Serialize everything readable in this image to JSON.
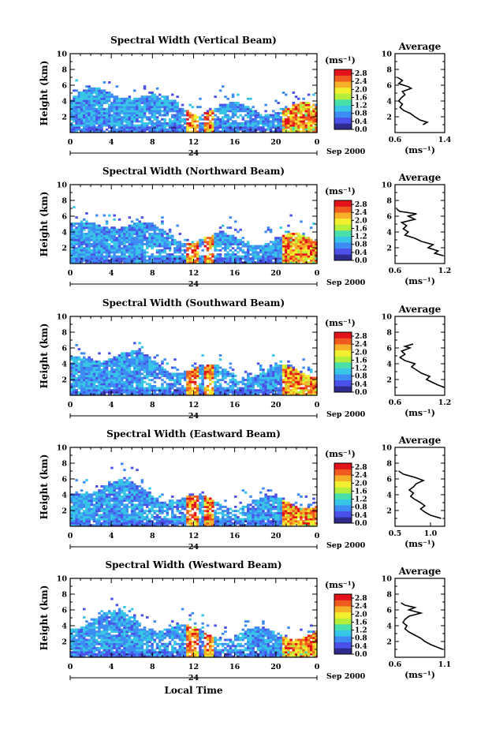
{
  "chart_data": {
    "type": "heatmap",
    "panels": [
      {
        "title": "Spectral Width (Vertical Beam)",
        "avg_xticks": [
          "0.6",
          "1.4"
        ],
        "avg_xlim": [
          0.6,
          1.4
        ],
        "avg_profile": [
          [
            1.05,
            1
          ],
          [
            1.12,
            1.3
          ],
          [
            1.0,
            1.6
          ],
          [
            0.92,
            2
          ],
          [
            0.85,
            2.4
          ],
          [
            0.74,
            2.8
          ],
          [
            0.68,
            3.2
          ],
          [
            0.72,
            3.6
          ],
          [
            0.66,
            4
          ],
          [
            0.7,
            4.4
          ],
          [
            0.76,
            4.8
          ],
          [
            0.72,
            5.2
          ],
          [
            0.86,
            5.6
          ],
          [
            0.82,
            5.8
          ],
          [
            0.66,
            6.2
          ],
          [
            0.72,
            6.6
          ],
          [
            0.64,
            7
          ]
        ]
      },
      {
        "title": "Spectral Width (Northward Beam)",
        "avg_xticks": [
          "0.6",
          "1.2"
        ],
        "avg_xlim": [
          0.6,
          1.2
        ],
        "avg_profile": [
          [
            1.18,
            1
          ],
          [
            1.08,
            1.3
          ],
          [
            1.12,
            1.6
          ],
          [
            1.0,
            2
          ],
          [
            1.06,
            2.4
          ],
          [
            0.92,
            2.8
          ],
          [
            0.84,
            3.2
          ],
          [
            0.72,
            3.6
          ],
          [
            0.76,
            4
          ],
          [
            0.7,
            4.4
          ],
          [
            0.74,
            4.8
          ],
          [
            0.68,
            5.2
          ],
          [
            0.84,
            5.6
          ],
          [
            0.76,
            6
          ],
          [
            0.86,
            6.3
          ],
          [
            0.66,
            6.6
          ],
          [
            0.62,
            6.9
          ]
        ]
      },
      {
        "title": "Spectral Width (Southward Beam)",
        "avg_xticks": [
          "0.6",
          "1.2"
        ],
        "avg_xlim": [
          0.6,
          1.2
        ],
        "avg_profile": [
          [
            1.2,
            1
          ],
          [
            1.12,
            1.3
          ],
          [
            1.06,
            1.6
          ],
          [
            0.98,
            2
          ],
          [
            1.02,
            2.4
          ],
          [
            0.92,
            2.8
          ],
          [
            0.86,
            3.2
          ],
          [
            0.8,
            3.6
          ],
          [
            0.84,
            4
          ],
          [
            0.72,
            4.4
          ],
          [
            0.66,
            4.8
          ],
          [
            0.72,
            5.2
          ],
          [
            0.68,
            5.6
          ],
          [
            0.78,
            6
          ],
          [
            0.72,
            6.2
          ],
          [
            0.82,
            6.5
          ]
        ]
      },
      {
        "title": "Spectral Width (Eastward Beam)",
        "avg_xticks": [
          "0.5",
          "1.0"
        ],
        "avg_xlim": [
          0.5,
          1.2
        ],
        "avg_profile": [
          [
            1.15,
            1
          ],
          [
            1.0,
            1.4
          ],
          [
            0.92,
            1.8
          ],
          [
            0.86,
            2.2
          ],
          [
            0.92,
            2.6
          ],
          [
            0.86,
            3
          ],
          [
            0.78,
            3.4
          ],
          [
            0.72,
            3.8
          ],
          [
            0.76,
            4.2
          ],
          [
            0.7,
            4.6
          ],
          [
            0.76,
            5
          ],
          [
            0.8,
            5.4
          ],
          [
            0.9,
            5.8
          ],
          [
            0.78,
            6.2
          ],
          [
            0.62,
            6.6
          ],
          [
            0.55,
            7
          ]
        ]
      },
      {
        "title": "Spectral Width (Westward Beam)",
        "avg_xticks": [
          "0.6",
          "1.1"
        ],
        "avg_xlim": [
          0.6,
          1.1
        ],
        "avg_profile": [
          [
            1.08,
            1
          ],
          [
            1.02,
            1.3
          ],
          [
            0.96,
            1.6
          ],
          [
            0.9,
            2
          ],
          [
            0.86,
            2.4
          ],
          [
            0.8,
            2.8
          ],
          [
            0.74,
            3.2
          ],
          [
            0.7,
            3.6
          ],
          [
            0.72,
            4
          ],
          [
            0.68,
            4.4
          ],
          [
            0.7,
            4.8
          ],
          [
            0.74,
            5.2
          ],
          [
            0.86,
            5.6
          ],
          [
            0.74,
            6
          ],
          [
            0.8,
            6.3
          ],
          [
            0.7,
            6.6
          ],
          [
            0.66,
            6.9
          ]
        ]
      }
    ],
    "xlabel_bottom": "Local Time",
    "xticks": [
      "0",
      "4",
      "8",
      "12",
      "16",
      "20",
      "0"
    ],
    "xlim_hours": [
      0,
      24
    ],
    "date_center": "24",
    "date_right": "Sep 2000",
    "ylabel": "Height (km)",
    "yticks": [
      "2",
      "4",
      "6",
      "8",
      "10"
    ],
    "ylim_km": [
      0,
      10
    ],
    "colorbar_unit": "(ms⁻¹)",
    "colorbar_ticks": [
      "2.8",
      "2.4",
      "2.0",
      "1.6",
      "1.2",
      "0.8",
      "0.4",
      "0.0"
    ],
    "colorbar_range": [
      0,
      3.0
    ],
    "avg_title": "Average",
    "avg_xlabel": "(ms⁻¹)",
    "avg_yticks": [
      "2",
      "4",
      "6",
      "8",
      "10"
    ],
    "colors": [
      "#2e2b8c",
      "#4b50e8",
      "#3d8cf3",
      "#37c6e6",
      "#48e0a8",
      "#b5ef3c",
      "#f2ef2f",
      "#f7b128",
      "#ef5a1e",
      "#e3121a"
    ]
  }
}
